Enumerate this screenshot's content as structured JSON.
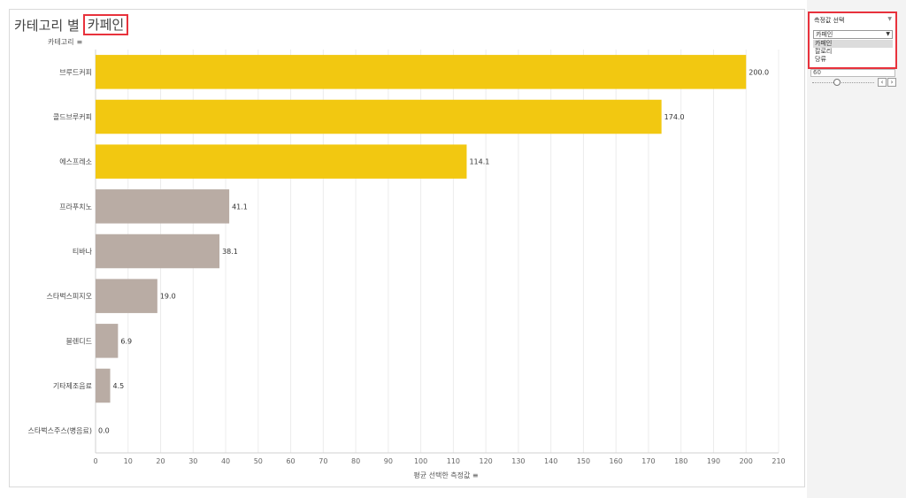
{
  "title": {
    "prefix": "카테고리 별",
    "measure": "카페인"
  },
  "category_header": "카테고리",
  "parameter": {
    "label": "측정값 선택",
    "selected": "카페인",
    "options": [
      "카페인",
      "칼로리",
      "당류"
    ],
    "extra_value": "60"
  },
  "colors": {
    "highlight": "#f2c811",
    "other": "#b9aca4",
    "accent_border": "#e8323c"
  },
  "chart_data": {
    "type": "bar",
    "orientation": "horizontal",
    "categories": [
      "브루드커피",
      "콜드브루커피",
      "에스프레소",
      "프라푸치노",
      "티바나",
      "스타벅스피지오",
      "블렌디드",
      "기타제조음료",
      "스타벅스주스(병음료)"
    ],
    "values": [
      200.0,
      174.0,
      114.1,
      41.1,
      38.1,
      19.0,
      6.9,
      4.5,
      0.0
    ],
    "value_labels": [
      "200.0",
      "174.0",
      "114.1",
      "41.1",
      "38.1",
      "19.0",
      "6.9",
      "4.5",
      "0.0"
    ],
    "highlighted": [
      true,
      true,
      true,
      false,
      false,
      false,
      false,
      false,
      false
    ],
    "xlabel": "평균 선택한 측정값",
    "xlim": [
      0,
      210
    ],
    "xticks": [
      0,
      10,
      20,
      30,
      40,
      50,
      60,
      70,
      80,
      90,
      100,
      110,
      120,
      130,
      140,
      150,
      160,
      170,
      180,
      190,
      200,
      210
    ],
    "grid": true
  }
}
